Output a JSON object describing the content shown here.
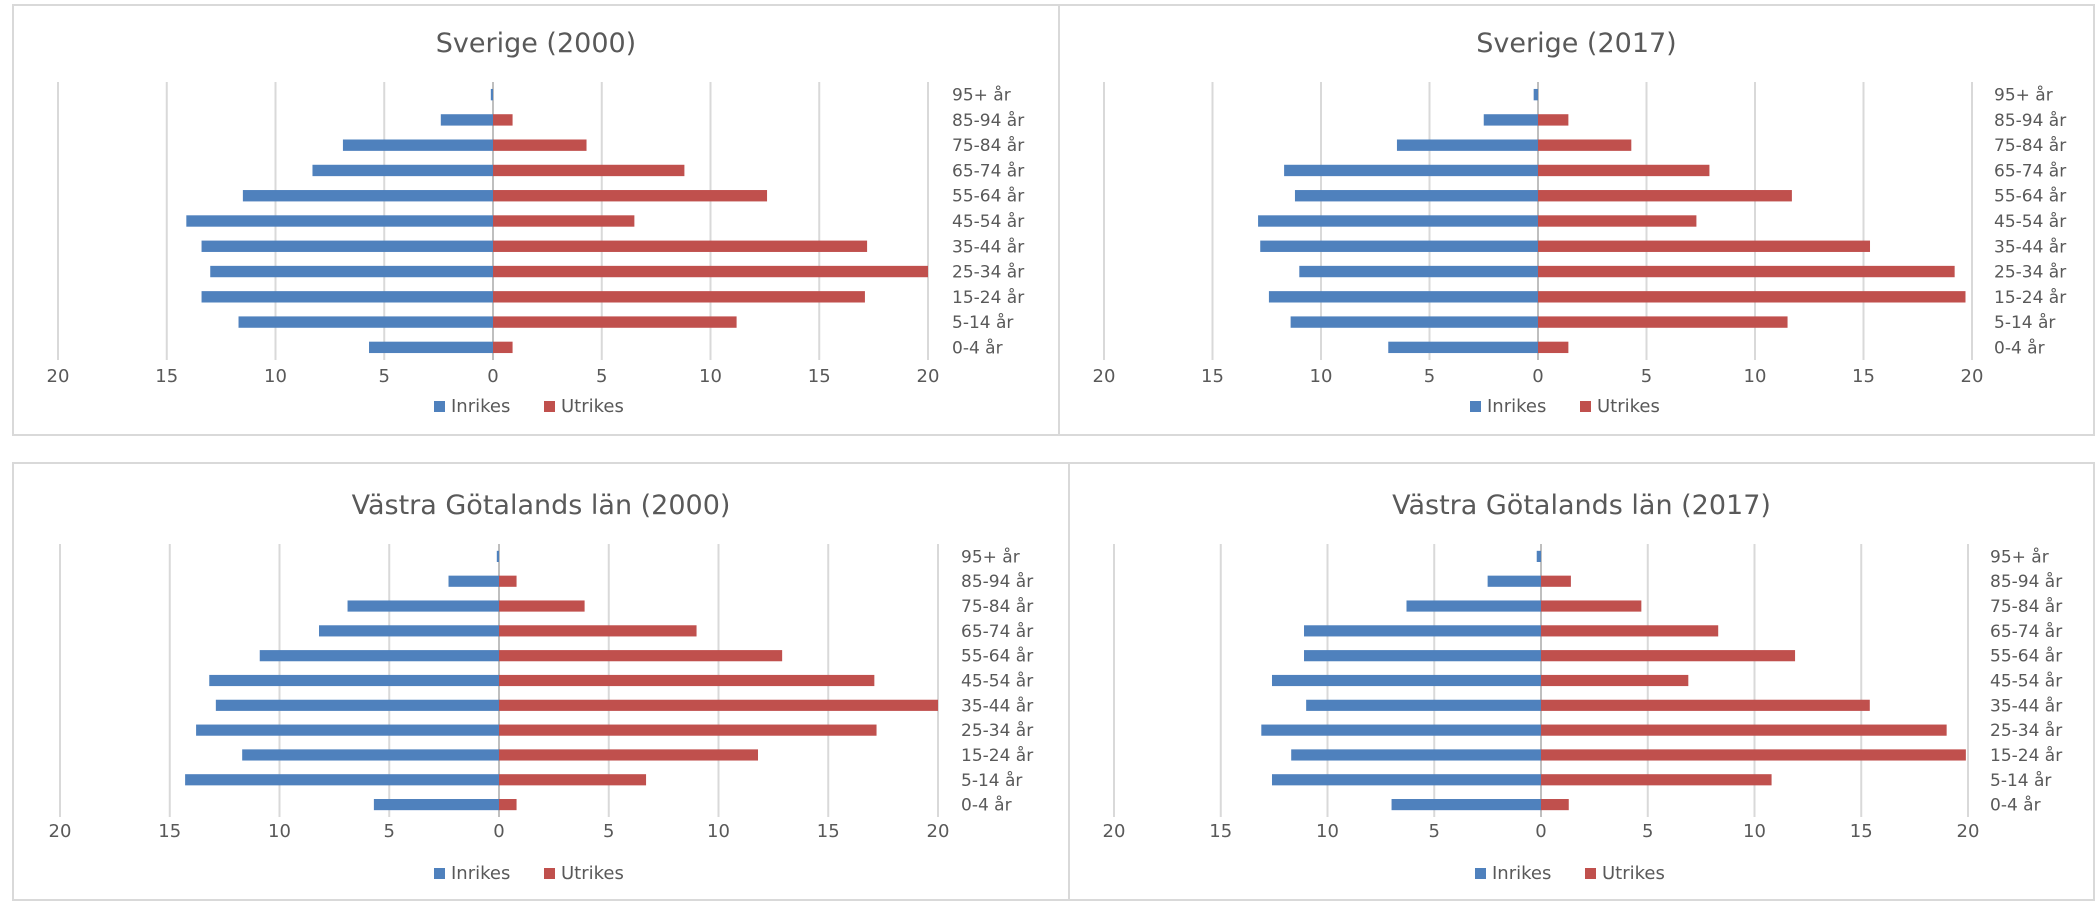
{
  "colors": {
    "inrikes": "#4f81bd",
    "utrikes": "#c0504d",
    "grid": "#d9d9d9",
    "text": "#595959"
  },
  "shared": {
    "categories": [
      "95+ år",
      "85-94 år",
      "75-84 år",
      "65-74 år",
      "55-64 år",
      "45-54 år",
      "35-44 år",
      "25-34 år",
      "15-24 år",
      "5-14 år",
      "0-4 år"
    ],
    "xticks": [
      "20",
      "15",
      "10",
      "5",
      "0",
      "5",
      "10",
      "15",
      "20"
    ],
    "legend": [
      "Inrikes",
      "Utrikes"
    ]
  },
  "chart_data": [
    {
      "type": "bar",
      "orientation": "horizontal-population-pyramid",
      "title": "Sverige (2000)",
      "categories": [
        "95+ år",
        "85-94 år",
        "75-84 år",
        "65-74 år",
        "55-64 år",
        "45-54 år",
        "35-44 år",
        "25-34 år",
        "15-24 år",
        "5-14 år",
        "0-4 år"
      ],
      "series": [
        {
          "name": "Inrikes",
          "values": [
            0.1,
            2.4,
            6.9,
            8.3,
            11.5,
            14.1,
            13.4,
            13.0,
            13.4,
            11.7,
            5.7
          ]
        },
        {
          "name": "Utrikes",
          "values": [
            0.0,
            0.9,
            4.3,
            8.8,
            12.6,
            6.5,
            17.2,
            20.0,
            17.1,
            11.2,
            0.9
          ]
        }
      ],
      "xlim": [
        -20,
        20
      ],
      "legend_position": "bottom"
    },
    {
      "type": "bar",
      "orientation": "horizontal-population-pyramid",
      "title": "Sverige (2017)",
      "categories": [
        "95+ år",
        "85-94 år",
        "75-84 år",
        "65-74 år",
        "55-64 år",
        "45-54 år",
        "35-44 år",
        "25-34 år",
        "15-24 år",
        "5-14 år",
        "0-4 år"
      ],
      "series": [
        {
          "name": "Inrikes",
          "values": [
            0.2,
            2.5,
            6.5,
            11.7,
            11.2,
            12.9,
            12.8,
            11.0,
            12.4,
            11.4,
            6.9
          ]
        },
        {
          "name": "Utrikes",
          "values": [
            0.0,
            1.4,
            4.3,
            7.9,
            11.7,
            7.3,
            15.3,
            19.2,
            19.7,
            11.5,
            1.4
          ]
        }
      ],
      "xlim": [
        -20,
        20
      ],
      "legend_position": "bottom"
    },
    {
      "type": "bar",
      "orientation": "horizontal-population-pyramid",
      "title": "Västra Götalands län (2000)",
      "categories": [
        "95+ år",
        "85-94 år",
        "75-84 år",
        "65-74 år",
        "55-64 år",
        "45-54 år",
        "35-44 år",
        "25-34 år",
        "15-24 år",
        "5-14 år",
        "0-4 år"
      ],
      "series": [
        {
          "name": "Inrikes",
          "values": [
            0.1,
            2.3,
            6.9,
            8.2,
            10.9,
            13.2,
            12.9,
            13.8,
            11.7,
            14.3,
            5.7
          ]
        },
        {
          "name": "Utrikes",
          "values": [
            0.0,
            0.8,
            3.9,
            9.0,
            12.9,
            17.1,
            20.0,
            17.2,
            11.8,
            6.7,
            0.8
          ]
        }
      ],
      "xlim": [
        -20,
        20
      ],
      "legend_position": "bottom"
    },
    {
      "type": "bar",
      "orientation": "horizontal-population-pyramid",
      "title": "Västra Götalands län (2017)",
      "categories": [
        "95+ år",
        "85-94 år",
        "75-84 år",
        "65-74 år",
        "55-64 år",
        "45-54 år",
        "35-44 år",
        "25-34 år",
        "15-24 år",
        "5-14 år",
        "0-4 år"
      ],
      "series": [
        {
          "name": "Inrikes",
          "values": [
            0.2,
            2.5,
            6.3,
            11.1,
            11.1,
            12.6,
            11.0,
            13.1,
            11.7,
            12.6,
            7.0
          ]
        },
        {
          "name": "Utrikes",
          "values": [
            0.0,
            1.4,
            4.7,
            8.3,
            11.9,
            6.9,
            15.4,
            19.0,
            19.9,
            10.8,
            1.3
          ]
        }
      ],
      "xlim": [
        -20,
        20
      ],
      "legend_position": "bottom"
    }
  ]
}
